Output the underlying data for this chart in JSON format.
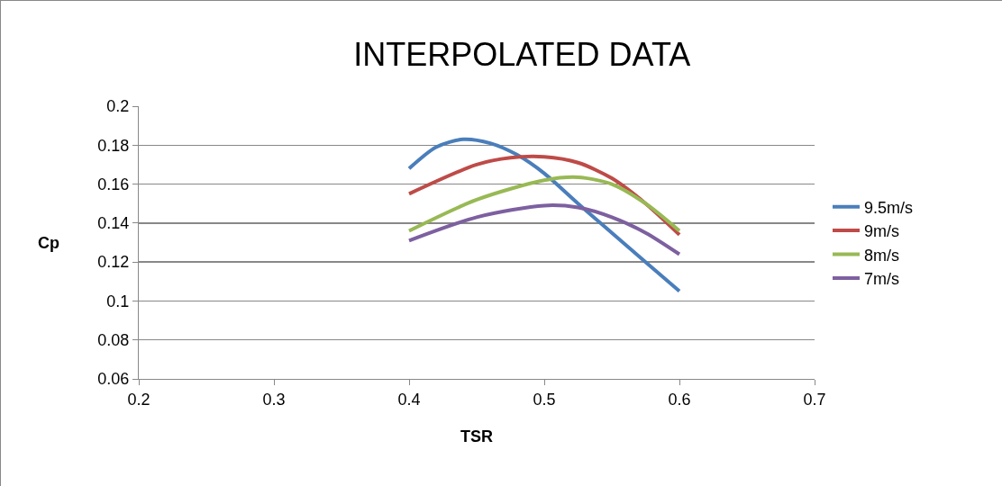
{
  "chart_data": {
    "type": "line",
    "title": "INTERPOLATED DATA",
    "xlabel": "TSR",
    "ylabel": "Cp",
    "xlim": [
      0.2,
      0.7
    ],
    "xticks": [
      0.2,
      0.3,
      0.4,
      0.5,
      0.6,
      0.7
    ],
    "ylim": [
      0.06,
      0.2
    ],
    "yticks": [
      0.06,
      0.08,
      0.1,
      0.12,
      0.14,
      0.16,
      0.18,
      0.2
    ],
    "grid": "y",
    "legend": "right",
    "marker": "none",
    "line_style": "solid",
    "series": [
      {
        "name": "9.5m/s",
        "color": "#4a7ebb",
        "x": [
          0.4,
          0.42,
          0.44,
          0.46,
          0.48,
          0.5,
          0.525,
          0.55,
          0.575,
          0.6
        ],
        "values": [
          0.168,
          0.179,
          0.183,
          0.181,
          0.175,
          0.1655,
          0.15,
          0.135,
          0.12,
          0.105
        ]
      },
      {
        "name": "9m/s",
        "color": "#be4b48",
        "x": [
          0.4,
          0.45,
          0.475,
          0.5,
          0.525,
          0.55,
          0.575,
          0.6
        ],
        "values": [
          0.155,
          0.17,
          0.1735,
          0.174,
          0.171,
          0.163,
          0.15,
          0.134
        ]
      },
      {
        "name": "8m/s",
        "color": "#98b954",
        "x": [
          0.4,
          0.45,
          0.5,
          0.525,
          0.55,
          0.575,
          0.6
        ],
        "values": [
          0.136,
          0.152,
          0.162,
          0.1635,
          0.16,
          0.15,
          0.136
        ]
      },
      {
        "name": "7m/s",
        "color": "#7d60a0",
        "x": [
          0.4,
          0.45,
          0.5,
          0.525,
          0.55,
          0.575,
          0.6
        ],
        "values": [
          0.131,
          0.143,
          0.149,
          0.148,
          0.143,
          0.135,
          0.124
        ]
      }
    ]
  }
}
